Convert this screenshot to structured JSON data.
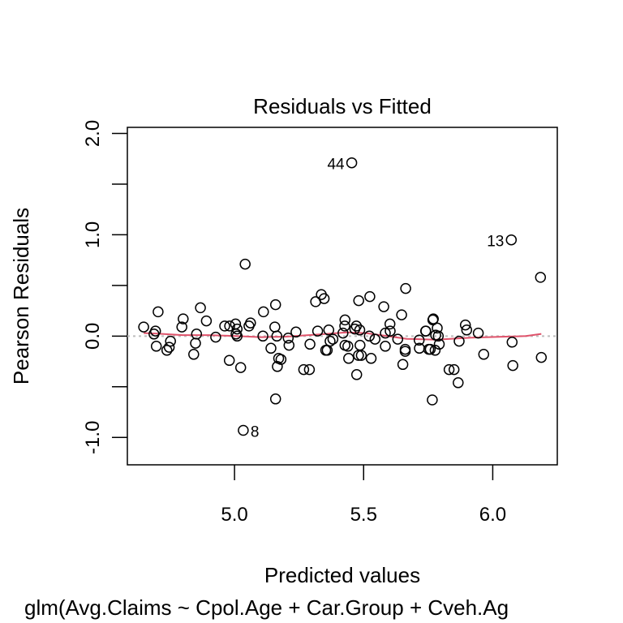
{
  "chart_data": {
    "type": "scatter",
    "title": "Residuals vs Fitted",
    "xlabel": "Predicted values",
    "ylabel": "Pearson Residuals",
    "subtitle": "glm(Avg.Claims ~ Cpol.Age + Car.Group + Cveh.Ag",
    "xlim": [
      4.585,
      6.25
    ],
    "ylim": [
      -1.27,
      2.06
    ],
    "x_ticks": [
      5.0,
      5.5,
      6.0
    ],
    "x_tick_labels": [
      "5.0",
      "5.5",
      "6.0"
    ],
    "y_ticks": [
      -1.0,
      -0.5,
      0.0,
      0.5,
      1.0,
      1.5,
      2.0
    ],
    "y_tick_labels": [
      "-1.0",
      "",
      "0.0",
      "",
      "1.0",
      "",
      "2.0"
    ],
    "grid": false,
    "reference_line": {
      "y": 0,
      "style": "dotted",
      "color": "#BEBEBE"
    },
    "smoother_color": "#DF536B",
    "point_color": "#000000",
    "points": [
      [
        4.648,
        0.09
      ],
      [
        4.704,
        0.24
      ],
      [
        4.694,
        0.05
      ],
      [
        4.688,
        0.02
      ],
      [
        4.697,
        -0.1
      ],
      [
        4.752,
        -0.05
      ],
      [
        4.747,
        -0.11
      ],
      [
        4.738,
        -0.14
      ],
      [
        4.801,
        0.17
      ],
      [
        4.796,
        0.09
      ],
      [
        4.868,
        0.28
      ],
      [
        4.891,
        0.15
      ],
      [
        4.853,
        0.02
      ],
      [
        4.849,
        -0.07
      ],
      [
        4.842,
        -0.18
      ],
      [
        4.927,
        -0.01
      ],
      [
        4.962,
        0.1
      ],
      [
        4.981,
        0.1
      ],
      [
        5.004,
        0.12
      ],
      [
        5.006,
        0.02
      ],
      [
        4.98,
        -0.24
      ],
      [
        5.041,
        0.71
      ],
      [
        5.336,
        0.41
      ],
      [
        5.347,
        0.37
      ],
      [
        5.314,
        0.34
      ],
      [
        5.159,
        0.31
      ],
      [
        5.112,
        0.24
      ],
      [
        5.01,
        0.07
      ],
      [
        5.062,
        0.13
      ],
      [
        5.056,
        0.1
      ],
      [
        5.156,
        0.09
      ],
      [
        5.01,
        0.0
      ],
      [
        5.11,
        0.0
      ],
      [
        5.164,
        0.0
      ],
      [
        5.208,
        -0.02
      ],
      [
        5.211,
        -0.09
      ],
      [
        5.238,
        0.04
      ],
      [
        5.141,
        -0.12
      ],
      [
        5.292,
        -0.08
      ],
      [
        5.322,
        0.05
      ],
      [
        5.365,
        0.06
      ],
      [
        5.37,
        -0.05
      ],
      [
        5.353,
        -0.14
      ],
      [
        5.171,
        -0.22
      ],
      [
        5.18,
        -0.23
      ],
      [
        5.166,
        -0.3
      ],
      [
        5.268,
        -0.33
      ],
      [
        5.29,
        -0.33
      ],
      [
        5.159,
        -0.62
      ],
      [
        5.034,
        -0.93
      ],
      [
        5.024,
        -0.31
      ],
      [
        5.454,
        1.71
      ],
      [
        6.072,
        0.95
      ],
      [
        5.663,
        0.47
      ],
      [
        5.524,
        0.39
      ],
      [
        5.481,
        0.35
      ],
      [
        5.578,
        0.29
      ],
      [
        5.647,
        0.21
      ],
      [
        5.768,
        0.16
      ],
      [
        5.428,
        0.16
      ],
      [
        5.427,
        0.1
      ],
      [
        5.472,
        0.1
      ],
      [
        5.466,
        0.07
      ],
      [
        5.602,
        0.12
      ],
      [
        5.603,
        0.05
      ],
      [
        5.381,
        -0.03
      ],
      [
        5.359,
        -0.14
      ],
      [
        5.42,
        0.03
      ],
      [
        5.485,
        0.06
      ],
      [
        5.522,
        0.0
      ],
      [
        5.544,
        -0.03
      ],
      [
        5.584,
        0.03
      ],
      [
        5.632,
        -0.03
      ],
      [
        5.428,
        -0.09
      ],
      [
        5.439,
        -0.1
      ],
      [
        5.486,
        -0.09
      ],
      [
        5.584,
        -0.1
      ],
      [
        5.661,
        -0.13
      ],
      [
        5.661,
        -0.15
      ],
      [
        5.442,
        -0.22
      ],
      [
        5.48,
        -0.19
      ],
      [
        5.491,
        -0.19
      ],
      [
        5.529,
        -0.22
      ],
      [
        5.652,
        -0.28
      ],
      [
        5.473,
        -0.38
      ],
      [
        5.74,
        0.05
      ],
      [
        5.715,
        -0.04
      ],
      [
        5.716,
        -0.12
      ],
      [
        5.758,
        -0.13
      ],
      [
        5.779,
        0.01
      ],
      [
        6.185,
        0.58
      ],
      [
        5.77,
        0.17
      ],
      [
        5.785,
        0.08
      ],
      [
        5.741,
        0.05
      ],
      [
        5.789,
        0.0
      ],
      [
        5.793,
        -0.08
      ],
      [
        5.752,
        -0.13
      ],
      [
        5.777,
        -0.14
      ],
      [
        5.894,
        0.11
      ],
      [
        5.899,
        0.06
      ],
      [
        5.944,
        0.03
      ],
      [
        5.87,
        -0.05
      ],
      [
        6.075,
        -0.06
      ],
      [
        5.965,
        -0.18
      ],
      [
        6.188,
        -0.21
      ],
      [
        6.078,
        -0.29
      ],
      [
        5.831,
        -0.33
      ],
      [
        5.85,
        -0.33
      ],
      [
        5.866,
        -0.46
      ],
      [
        5.766,
        -0.63
      ]
    ],
    "annotations": [
      {
        "label": "44",
        "x": 5.454,
        "y": 1.71,
        "side": "left"
      },
      {
        "label": "13",
        "x": 6.072,
        "y": 0.95,
        "side": "left"
      },
      {
        "label": "8",
        "x": 5.034,
        "y": -0.93,
        "side": "right"
      }
    ],
    "smoother": [
      [
        4.648,
        0.03
      ],
      [
        4.7,
        0.025
      ],
      [
        4.8,
        0.01
      ],
      [
        4.9,
        0.01
      ],
      [
        5.008,
        0.0
      ],
      [
        5.1,
        -0.01
      ],
      [
        5.2,
        -0.005
      ],
      [
        5.35,
        0.02
      ],
      [
        5.434,
        0.037
      ],
      [
        5.508,
        0.03
      ],
      [
        5.592,
        0.0
      ],
      [
        5.667,
        -0.027
      ],
      [
        5.78,
        -0.035
      ],
      [
        5.917,
        -0.015
      ],
      [
        6.023,
        -0.008
      ],
      [
        6.128,
        0.0
      ],
      [
        6.188,
        0.022
      ]
    ]
  }
}
